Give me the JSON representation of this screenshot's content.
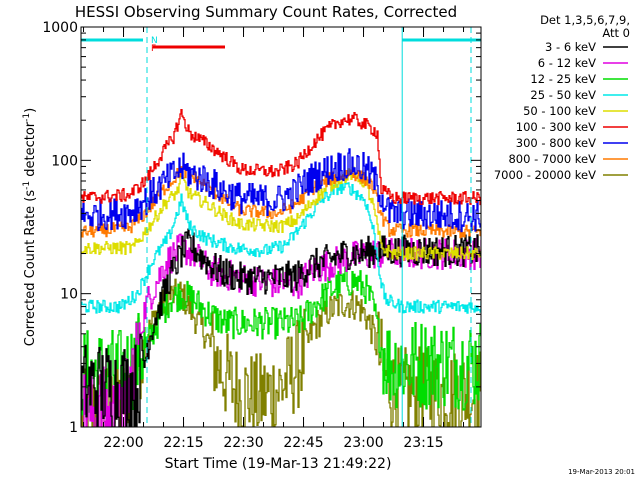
{
  "chart_data": {
    "type": "line",
    "title": "HESSI Observing Summary Count Rates, Corrected",
    "xlabel": "Start Time (19-Mar-13 21:49:22)",
    "ylabel_parts": [
      "Corrected Count Rate (s",
      "-1",
      " detector",
      "-1",
      ")"
    ],
    "yscale": "log",
    "ylim": [
      1,
      1000
    ],
    "yticks": [
      {
        "value": 1,
        "label": "1"
      },
      {
        "value": 10,
        "label": "10"
      },
      {
        "value": 100,
        "label": "100"
      },
      {
        "value": 1000,
        "label": "1000"
      }
    ],
    "xlim_min": [
      0,
      100
    ],
    "xticks": [
      {
        "value": 10.63,
        "label": "22:00"
      },
      {
        "value": 25.63,
        "label": "22:15"
      },
      {
        "value": 40.63,
        "label": "22:30"
      },
      {
        "value": 55.63,
        "label": "22:45"
      },
      {
        "value": 70.63,
        "label": "23:00"
      },
      {
        "value": 85.63,
        "label": "23:15"
      }
    ],
    "legend_header": [
      "Det 1,3,5,6,7,9,",
      "Att 0"
    ],
    "legend_placement": "right",
    "series": [
      {
        "name": "3 - 6 keV",
        "color": "#000000",
        "points": [
          [
            0,
            2
          ],
          [
            14,
            2
          ],
          [
            18,
            6
          ],
          [
            22,
            13
          ],
          [
            25,
            20
          ],
          [
            27,
            24
          ],
          [
            30,
            19
          ],
          [
            34,
            15
          ],
          [
            40,
            13
          ],
          [
            48,
            13
          ],
          [
            54,
            13.5
          ],
          [
            57,
            16
          ],
          [
            62,
            18
          ],
          [
            66,
            20
          ],
          [
            70,
            20
          ],
          [
            73,
            21
          ],
          [
            75,
            21
          ]
        ]
      },
      {
        "name": "6 - 12 keV",
        "color": "#e000e0",
        "points": [
          [
            0,
            1.3
          ],
          [
            6,
            1.3
          ],
          [
            10,
            1
          ],
          [
            16,
            8
          ],
          [
            21,
            17
          ],
          [
            25,
            22
          ],
          [
            28,
            20
          ],
          [
            32,
            15
          ],
          [
            40,
            13
          ],
          [
            48,
            12
          ],
          [
            54,
            12
          ],
          [
            58,
            15
          ],
          [
            63,
            17
          ],
          [
            67,
            19
          ],
          [
            70,
            19
          ],
          [
            73,
            20
          ],
          [
            75,
            20
          ]
        ]
      },
      {
        "name": "12 - 25 keV",
        "color": "#00dd00",
        "points": [
          [
            0,
            2.5
          ],
          [
            10,
            2.5
          ],
          [
            13,
            3
          ],
          [
            16,
            4
          ],
          [
            19,
            6
          ],
          [
            22,
            9
          ],
          [
            25,
            10
          ],
          [
            28,
            9
          ],
          [
            32,
            7
          ],
          [
            36,
            6
          ],
          [
            50,
            6
          ],
          [
            55,
            6.2
          ],
          [
            58,
            8
          ],
          [
            62,
            10.5
          ],
          [
            65,
            12
          ],
          [
            68,
            12.5
          ],
          [
            71,
            11
          ],
          [
            73,
            8
          ],
          [
            75,
            4
          ],
          [
            77,
            3
          ],
          [
            83,
            3
          ],
          [
            100,
            3
          ]
        ]
      },
      {
        "name": "25 - 50 keV",
        "color": "#00e8e8",
        "points": [
          [
            0,
            8
          ],
          [
            10,
            8
          ],
          [
            14,
            10
          ],
          [
            18,
            18
          ],
          [
            22,
            27
          ],
          [
            25,
            50
          ],
          [
            27,
            32
          ],
          [
            31,
            26
          ],
          [
            38,
            22
          ],
          [
            46,
            21
          ],
          [
            51,
            23
          ],
          [
            55,
            32
          ],
          [
            60,
            50
          ],
          [
            64,
            62
          ],
          [
            67,
            63
          ],
          [
            71,
            50
          ],
          [
            73,
            30
          ],
          [
            75,
            12
          ],
          [
            76,
            9
          ],
          [
            80,
            8
          ],
          [
            100,
            8
          ]
        ]
      },
      {
        "name": "50 - 100 keV",
        "color": "#dddd00",
        "points": [
          [
            0,
            22
          ],
          [
            13,
            22
          ],
          [
            17,
            32
          ],
          [
            21,
            48
          ],
          [
            24,
            58
          ],
          [
            25,
            75
          ],
          [
            27,
            56
          ],
          [
            31,
            48
          ],
          [
            36,
            38
          ],
          [
            40,
            33
          ],
          [
            50,
            32
          ],
          [
            54,
            36
          ],
          [
            58,
            50
          ],
          [
            62,
            64
          ],
          [
            65,
            74
          ],
          [
            68,
            80
          ],
          [
            71,
            68
          ],
          [
            73,
            45
          ],
          [
            75,
            22
          ],
          [
            78,
            20
          ],
          [
            100,
            20
          ]
        ]
      },
      {
        "name": "100 - 300 keV",
        "color": "#ee0000",
        "points": [
          [
            0,
            52
          ],
          [
            12,
            55
          ],
          [
            16,
            70
          ],
          [
            20,
            110
          ],
          [
            23,
            150
          ],
          [
            25,
            225
          ],
          [
            27,
            160
          ],
          [
            31,
            135
          ],
          [
            36,
            105
          ],
          [
            40,
            85
          ],
          [
            49,
            82
          ],
          [
            54,
            95
          ],
          [
            58,
            135
          ],
          [
            62,
            175
          ],
          [
            65,
            200
          ],
          [
            68,
            205
          ],
          [
            71,
            185
          ],
          [
            73,
            170
          ],
          [
            74,
            160
          ],
          [
            75,
            60
          ],
          [
            78,
            52
          ],
          [
            100,
            52
          ]
        ]
      },
      {
        "name": "300 - 800 keV",
        "color": "#0000ee",
        "points": [
          [
            0,
            38
          ],
          [
            12,
            41
          ],
          [
            16,
            50
          ],
          [
            20,
            65
          ],
          [
            23,
            78
          ],
          [
            25,
            88
          ],
          [
            27,
            80
          ],
          [
            31,
            72
          ],
          [
            36,
            58
          ],
          [
            40,
            52
          ],
          [
            49,
            50
          ],
          [
            53,
            57
          ],
          [
            57,
            72
          ],
          [
            62,
            86
          ],
          [
            65,
            92
          ],
          [
            68,
            93
          ],
          [
            71,
            86
          ],
          [
            73,
            75
          ],
          [
            75,
            55
          ],
          [
            77,
            40
          ],
          [
            100,
            38
          ]
        ]
      },
      {
        "name": "800 - 7000 keV",
        "color": "#ff7a00",
        "points": [
          [
            0,
            29
          ],
          [
            12,
            31
          ],
          [
            16,
            40
          ],
          [
            20,
            58
          ],
          [
            23,
            72
          ],
          [
            25,
            85
          ],
          [
            27,
            78
          ],
          [
            31,
            65
          ],
          [
            36,
            50
          ],
          [
            40,
            42
          ],
          [
            49,
            40
          ],
          [
            54,
            48
          ],
          [
            58,
            62
          ],
          [
            62,
            72
          ],
          [
            65,
            78
          ],
          [
            68,
            80
          ],
          [
            71,
            72
          ],
          [
            73,
            62
          ],
          [
            75,
            38
          ],
          [
            77,
            30
          ],
          [
            100,
            29
          ]
        ]
      },
      {
        "name": "7000 - 20000 keV",
        "color": "#808000",
        "points": [
          [
            0,
            1.2
          ],
          [
            10,
            1.5
          ],
          [
            13,
            2.5
          ],
          [
            16,
            4.5
          ],
          [
            19,
            7.5
          ],
          [
            22,
            9.5
          ],
          [
            25,
            10
          ],
          [
            28,
            7
          ],
          [
            31,
            5
          ],
          [
            34,
            3
          ],
          [
            38,
            2
          ],
          [
            44,
            1.6
          ],
          [
            50,
            2
          ],
          [
            55,
            3.2
          ],
          [
            58,
            5.5
          ],
          [
            62,
            7.5
          ],
          [
            66,
            8.6
          ],
          [
            69,
            8.2
          ],
          [
            71,
            7
          ],
          [
            73,
            5
          ],
          [
            75,
            3
          ],
          [
            78,
            1.8
          ],
          [
            100,
            1.8
          ]
        ]
      }
    ],
    "annotations": {
      "letters": [
        {
          "text": "N",
          "color": "#00dddd",
          "x": 16.5
        },
        {
          "text": "F",
          "color": "#ee0000",
          "x": 16.5
        }
      ],
      "night_bars": [
        [
          0,
          15.5
        ],
        [
          80.3,
          100
        ]
      ],
      "flare_bar": [
        18,
        36
      ],
      "dashed_lines": [
        16.5,
        97.5
      ],
      "solid_lines": [
        80.3
      ]
    }
  },
  "footer": {
    "timestamp": "19-Mar-2013 20:01"
  }
}
